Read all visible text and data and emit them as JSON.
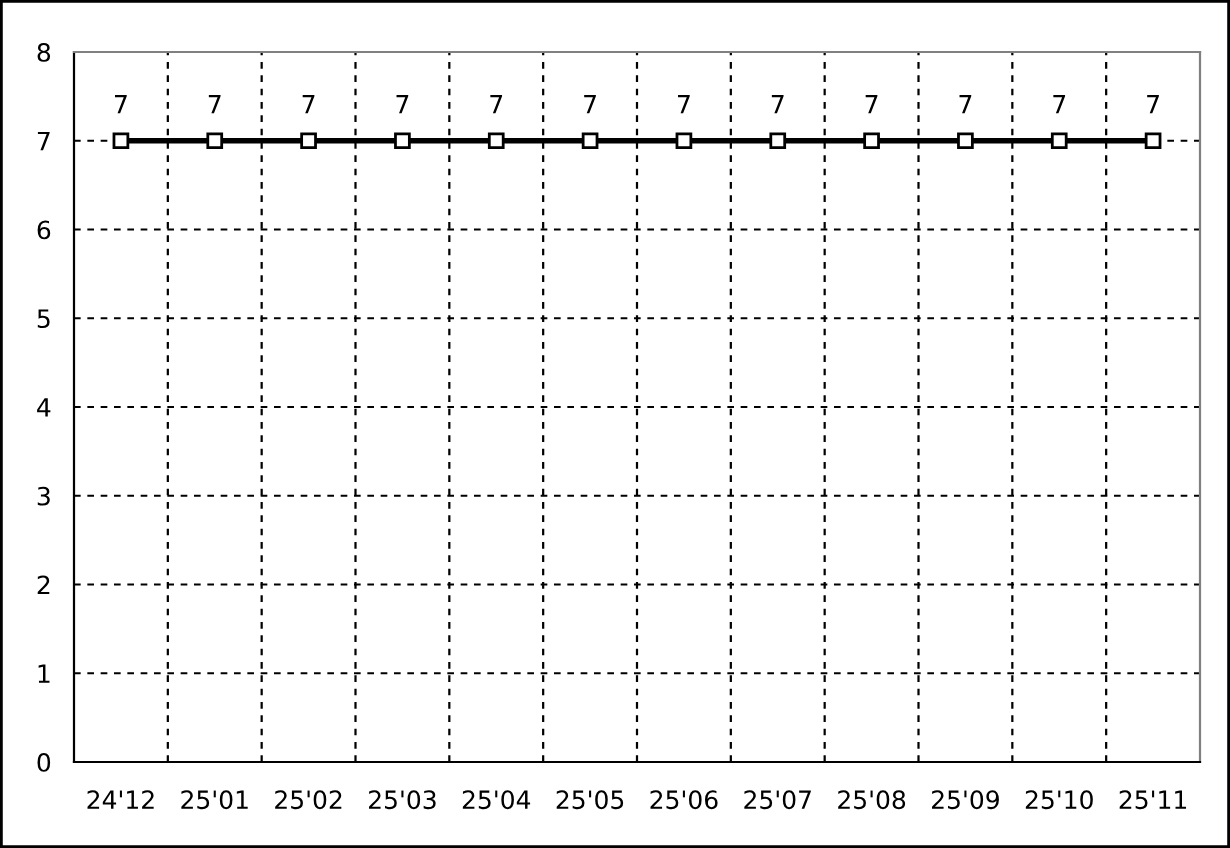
{
  "chart_data": {
    "type": "line",
    "categories": [
      "24'12",
      "25'01",
      "25'02",
      "25'03",
      "25'04",
      "25'05",
      "25'06",
      "25'07",
      "25'08",
      "25'09",
      "25'10",
      "25'11"
    ],
    "series": [
      {
        "color": "#000000",
        "values": [
          7,
          7,
          7,
          7,
          7,
          7,
          7,
          7,
          7,
          7,
          7,
          7
        ]
      }
    ],
    "ylim": [
      0,
      8
    ],
    "yticks": [
      0,
      1,
      2,
      3,
      4,
      5,
      6,
      7,
      8
    ],
    "grid": true,
    "marker": "square",
    "line_style": "solid",
    "data_labels": true
  }
}
